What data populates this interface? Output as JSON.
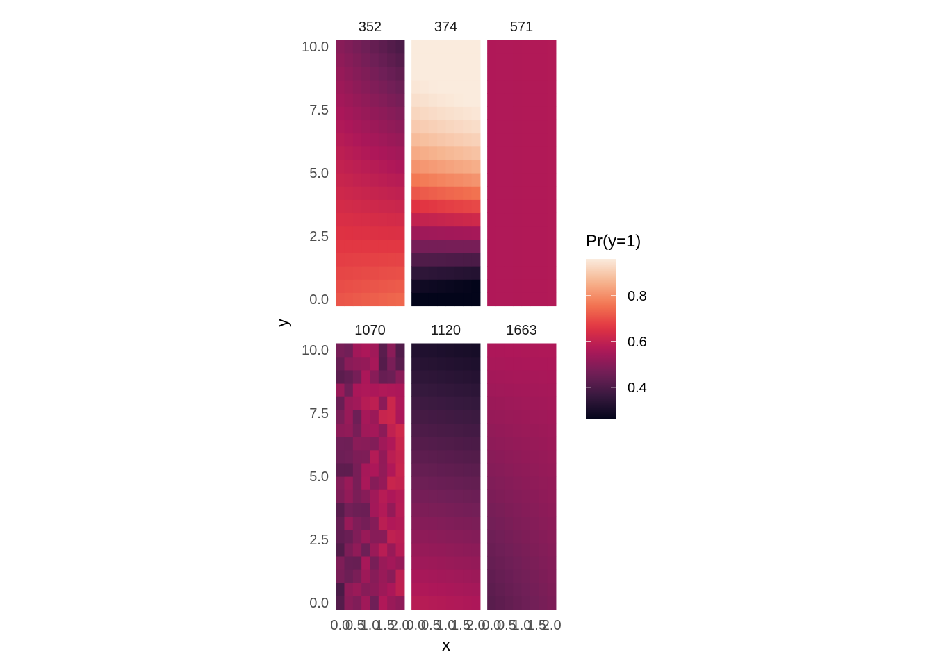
{
  "chart_data": {
    "type": "heatmap",
    "xlabel": "x",
    "ylabel": "y",
    "legend_title": "Pr(y=1)",
    "legend_placement": "right",
    "legend_ticks": [
      "0.4",
      "0.6",
      "0.8"
    ],
    "legend_tick_values": [
      0.4,
      0.6,
      0.8
    ],
    "color_range": [
      0.26,
      0.96
    ],
    "palette": [
      "#03051a",
      "#36193e",
      "#701f57",
      "#ad1759",
      "#e13342",
      "#f37651",
      "#f6b48f",
      "#faebdd"
    ],
    "x_ticks": [
      "0.0",
      "0.5",
      "1.0",
      "1.5",
      "2.0"
    ],
    "x_tick_values": [
      0.0,
      0.5,
      1.0,
      1.5,
      2.0
    ],
    "y_ticks": [
      "0.0",
      "2.5",
      "5.0",
      "7.5",
      "10.0"
    ],
    "y_tick_values": [
      0.0,
      2.5,
      5.0,
      7.5,
      10.0
    ],
    "xlim": [
      -0.1,
      2.1
    ],
    "ylim": [
      -0.25,
      10.25
    ],
    "grid": true,
    "panels": [
      {
        "label": "352",
        "model": {
          "type": "linear",
          "base": 0.71,
          "bx": 0.014,
          "by": -0.021,
          "bxy": -0.0065
        }
      },
      {
        "label": "374",
        "model": {
          "type": "logistic",
          "a": -1.15,
          "bx": -0.1,
          "by": 0.49,
          "bxy": 0.048
        }
      },
      {
        "label": "571",
        "model": {
          "type": "linear",
          "base": 0.565,
          "bx": 0.002,
          "by": 0.0,
          "bxy": 0.0
        }
      },
      {
        "label": "1070",
        "model": {
          "type": "noisy",
          "base": 0.44,
          "bx": 0.06,
          "by": 0.004,
          "bxy": 0.0,
          "seed": 7,
          "noise": 0.055,
          "corner": -0.1
        }
      },
      {
        "label": "1120",
        "model": {
          "type": "linear",
          "base": 0.58,
          "bx": -0.01,
          "by": -0.026,
          "bxy": 0.0
        }
      },
      {
        "label": "1663",
        "model": {
          "type": "linear",
          "base": 0.42,
          "bx": 0.03,
          "by": 0.014,
          "bxy": -0.0028
        }
      }
    ]
  }
}
